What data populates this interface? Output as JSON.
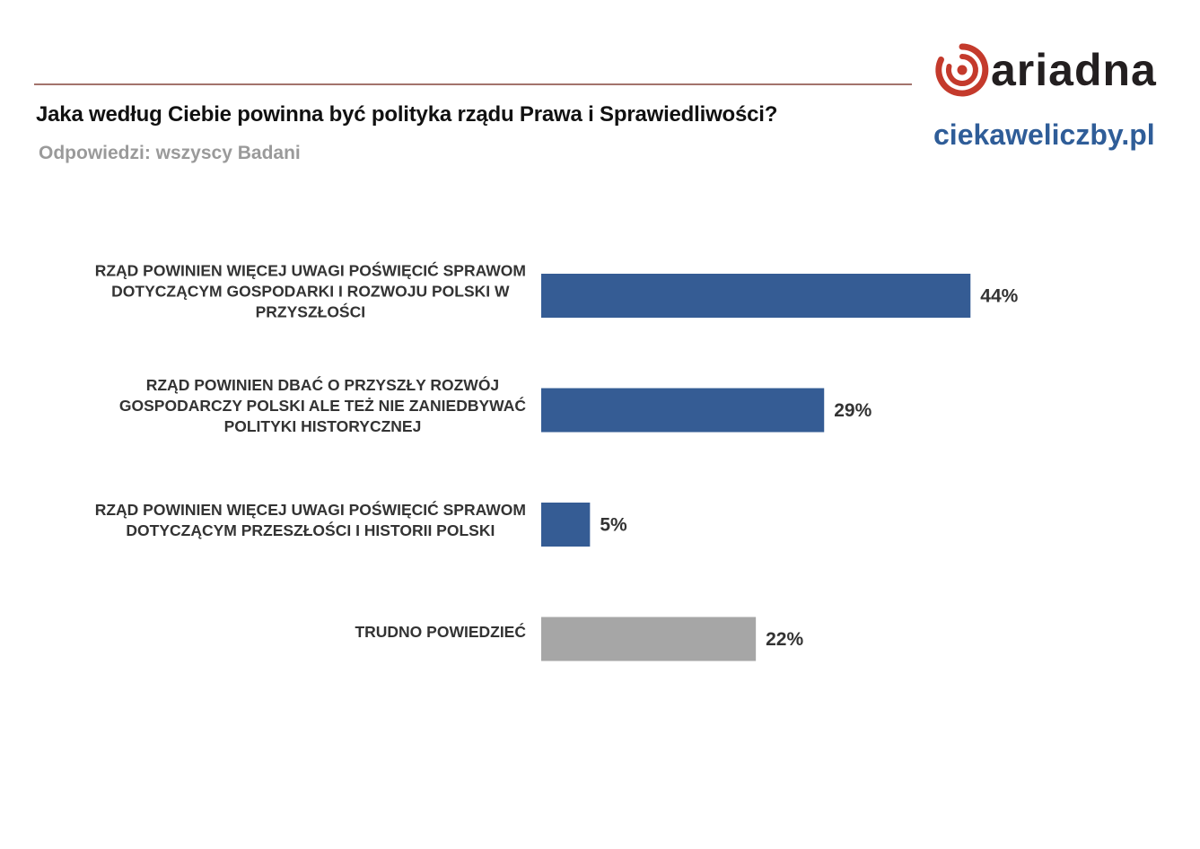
{
  "header": {
    "title": "Jaka według Ciebie powinna być polityka rządu Prawa i Sprawiedliwości?",
    "subtitle": "Odpowiedzi: wszyscy Badani"
  },
  "branding": {
    "logo_text": "ariadna",
    "logo_icon": "ariadna-spiral-logo",
    "site": "ciekaweliczby.pl"
  },
  "colors": {
    "primary_bar": "#355c94",
    "neutral_bar": "#a6a6a6",
    "rule": "#a3736c",
    "logo_red": "#c43a2c",
    "site_blue": "#2f5d98"
  },
  "chart_data": {
    "type": "bar",
    "orientation": "horizontal",
    "categories": [
      [
        "RZĄD POWINIEN WIĘCEJ UWAGI POŚWIĘCIĆ SPRAWOM",
        "DOTYCZĄCYM GOSPODARKI I ROZWOJU POLSKI W",
        "PRZYSZŁOŚCI"
      ],
      [
        "RZĄD POWINIEN DBAĆ O PRZYSZŁY ROZWÓJ",
        "GOSPODARCZY POLSKI ALE TEŻ NIE ZANIEDBYWAĆ",
        "POLITYKI HISTORYCZNEJ"
      ],
      [
        "RZĄD POWINIEN WIĘCEJ UWAGI POŚWIĘCIĆ SPRAWOM",
        "DOTYCZĄCYM PRZESZŁOŚCI I HISTORII POLSKI"
      ],
      [
        "TRUDNO POWIEDZIEĆ"
      ]
    ],
    "values": [
      44,
      29,
      5,
      22
    ],
    "value_labels": [
      "44%",
      "29%",
      "5%",
      "22%"
    ],
    "bar_colors": [
      "#355c94",
      "#355c94",
      "#355c94",
      "#a6a6a6"
    ],
    "unit": "%",
    "xlim": [
      0,
      100
    ],
    "grid": false,
    "legend": "none"
  }
}
